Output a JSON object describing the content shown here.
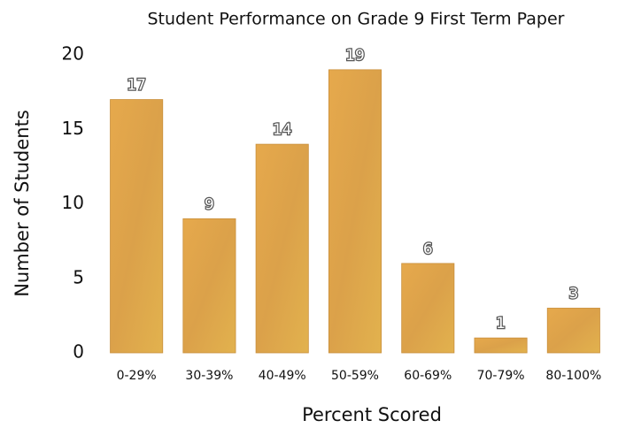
{
  "chart_data": {
    "type": "bar",
    "title": "Student Performance on Grade 9 First Term Paper",
    "xlabel": "Percent Scored",
    "ylabel": "Number of Students",
    "categories": [
      "0-29%",
      "30-39%",
      "40-49%",
      "50-59%",
      "60-69%",
      "70-79%",
      "80-100%"
    ],
    "values": [
      17,
      9,
      14,
      19,
      6,
      1,
      3
    ],
    "color": "#dfa64a",
    "ylim": [
      0,
      20
    ],
    "yticks": [
      0,
      5,
      10,
      15,
      20
    ],
    "grid": false
  }
}
